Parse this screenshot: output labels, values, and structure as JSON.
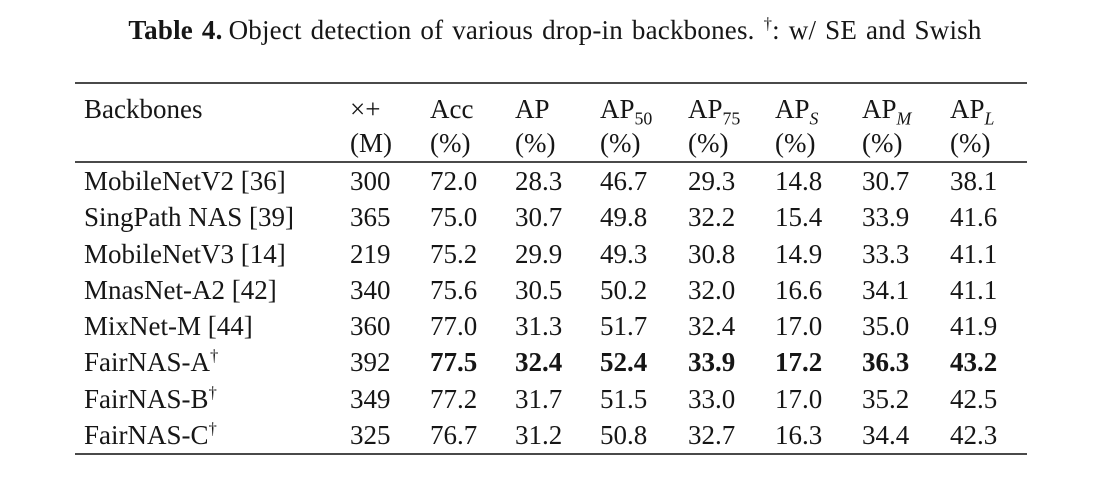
{
  "caption": {
    "label": "Table 4.",
    "body": "Object detection of various drop-in backbones.",
    "dagger_symbol": "†",
    "dagger_note": ": w/ SE and Swish"
  },
  "table": {
    "dagger_symbol": "†",
    "header": [
      {
        "main": "Backbones",
        "sub": "",
        "unit": ""
      },
      {
        "main": "×+",
        "sub": "",
        "unit": "(M)"
      },
      {
        "main": "Acc",
        "sub": "",
        "unit": "(%)"
      },
      {
        "main": "AP",
        "sub": "",
        "unit": "(%)"
      },
      {
        "main": "AP",
        "sub": "50",
        "unit": "(%)"
      },
      {
        "main": "AP",
        "sub": "75",
        "unit": "(%)"
      },
      {
        "main": "AP",
        "sub": "S",
        "unit": "(%)"
      },
      {
        "main": "AP",
        "sub": "M",
        "unit": "(%)"
      },
      {
        "main": "AP",
        "sub": "L",
        "unit": "(%)"
      }
    ],
    "rows": [
      {
        "backbone": "MobileNetV2 [36]",
        "dagger": false,
        "bold_from": -1,
        "values": [
          "300",
          "72.0",
          "28.3",
          "46.7",
          "29.3",
          "14.8",
          "30.7",
          "38.1"
        ]
      },
      {
        "backbone": "SingPath NAS [39]",
        "dagger": false,
        "bold_from": -1,
        "values": [
          "365",
          "75.0",
          "30.7",
          "49.8",
          "32.2",
          "15.4",
          "33.9",
          "41.6"
        ]
      },
      {
        "backbone": "MobileNetV3 [14]",
        "dagger": false,
        "bold_from": -1,
        "values": [
          "219",
          "75.2",
          "29.9",
          "49.3",
          "30.8",
          "14.9",
          "33.3",
          "41.1"
        ]
      },
      {
        "backbone": "MnasNet-A2 [42]",
        "dagger": false,
        "bold_from": -1,
        "values": [
          "340",
          "75.6",
          "30.5",
          "50.2",
          "32.0",
          "16.6",
          "34.1",
          "41.1"
        ]
      },
      {
        "backbone": "MixNet-M [44]",
        "dagger": false,
        "bold_from": -1,
        "values": [
          "360",
          "77.0",
          "31.3",
          "51.7",
          "32.4",
          "17.0",
          "35.0",
          "41.9"
        ]
      },
      {
        "backbone": "FairNAS-A",
        "dagger": true,
        "bold_from": 1,
        "values": [
          "392",
          "77.5",
          "32.4",
          "52.4",
          "33.9",
          "17.2",
          "36.3",
          "43.2"
        ]
      },
      {
        "backbone": "FairNAS-B",
        "dagger": true,
        "bold_from": -1,
        "values": [
          "349",
          "77.2",
          "31.7",
          "51.5",
          "33.0",
          "17.0",
          "35.2",
          "42.5"
        ]
      },
      {
        "backbone": "FairNAS-C",
        "dagger": true,
        "bold_from": -1,
        "values": [
          "325",
          "76.7",
          "31.2",
          "50.8",
          "32.7",
          "16.3",
          "34.4",
          "42.3"
        ]
      }
    ]
  }
}
